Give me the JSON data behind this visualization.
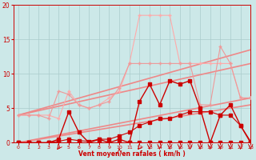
{
  "xlabel": "Vent moyen/en rafales ( km/h )",
  "background_color": "#cce8e8",
  "grid_color": "#aacccc",
  "xlim": [
    -0.5,
    23
  ],
  "ylim": [
    0,
    20
  ],
  "yticks": [
    0,
    5,
    10,
    15,
    20
  ],
  "xticks": [
    0,
    1,
    2,
    3,
    4,
    5,
    6,
    7,
    8,
    9,
    10,
    11,
    12,
    13,
    14,
    15,
    16,
    17,
    18,
    19,
    20,
    21,
    22,
    23
  ],
  "series": [
    {
      "x": [
        0,
        1,
        2,
        3,
        4,
        5,
        6,
        7,
        8,
        9,
        10,
        11,
        12,
        13,
        14,
        15,
        16,
        17,
        18,
        19,
        20,
        21,
        22,
        23
      ],
      "y": [
        0,
        0,
        0,
        0,
        0,
        0,
        0,
        0,
        0,
        0,
        0,
        0,
        0,
        0,
        0,
        0,
        0,
        0,
        0,
        0,
        0,
        0,
        0,
        0
      ],
      "color": "#cc0000",
      "lw": 0.8,
      "marker": "s",
      "ms": 2.5,
      "zorder": 5
    },
    {
      "x": [
        0,
        1,
        2,
        3,
        4,
        5,
        6,
        7,
        8,
        9,
        10,
        11,
        12,
        13,
        14,
        15,
        16,
        17,
        18,
        19,
        20,
        21,
        22,
        23
      ],
      "y": [
        0,
        0,
        0,
        0,
        0.2,
        0.5,
        0.3,
        0.2,
        0.5,
        0.5,
        1.0,
        1.5,
        2.5,
        3.0,
        3.5,
        3.5,
        4.0,
        4.5,
        4.5,
        4.5,
        4.0,
        4.0,
        2.5,
        0.2
      ],
      "color": "#cc0000",
      "lw": 0.8,
      "marker": "s",
      "ms": 2.5,
      "zorder": 5
    },
    {
      "x": [
        0,
        1,
        2,
        3,
        4,
        5,
        6,
        7,
        8,
        9,
        10,
        11,
        12,
        13,
        14,
        15,
        16,
        17,
        18,
        19,
        20,
        21,
        22,
        23
      ],
      "y": [
        0,
        0,
        0,
        0,
        0.5,
        4.5,
        1.5,
        0,
        0.5,
        0,
        0.5,
        0,
        6.0,
        8.5,
        5.5,
        9.0,
        8.5,
        9.0,
        5.0,
        0,
        4.0,
        5.5,
        2.5,
        0
      ],
      "color": "#cc0000",
      "lw": 1.0,
      "marker": "s",
      "ms": 2.5,
      "zorder": 5
    },
    {
      "x": [
        0,
        23
      ],
      "y": [
        0,
        5.5
      ],
      "color": "#ee8888",
      "lw": 1.2,
      "marker": null,
      "ms": 0,
      "zorder": 2
    },
    {
      "x": [
        0,
        23
      ],
      "y": [
        0,
        6.5
      ],
      "color": "#ee8888",
      "lw": 1.2,
      "marker": null,
      "ms": 0,
      "zorder": 2
    },
    {
      "x": [
        0,
        23
      ],
      "y": [
        4.0,
        11.5
      ],
      "color": "#ee8888",
      "lw": 1.2,
      "marker": null,
      "ms": 0,
      "zorder": 2
    },
    {
      "x": [
        0,
        23
      ],
      "y": [
        4.0,
        13.5
      ],
      "color": "#ee8888",
      "lw": 1.2,
      "marker": null,
      "ms": 0,
      "zorder": 2
    },
    {
      "x": [
        0,
        1,
        2,
        3,
        4,
        5,
        6,
        7,
        8,
        9,
        10,
        11,
        12,
        13,
        14,
        15,
        16,
        17,
        18,
        19,
        20,
        21,
        22,
        23
      ],
      "y": [
        4.0,
        4.0,
        4.0,
        4.0,
        3.5,
        7.5,
        5.5,
        5.0,
        5.5,
        6.5,
        7.5,
        11.5,
        18.5,
        18.5,
        18.5,
        18.5,
        11.5,
        11.5,
        11.5,
        11.5,
        11.5,
        11.5,
        6.5,
        6.5
      ],
      "color": "#ffaaaa",
      "lw": 0.8,
      "marker": "+",
      "ms": 3.5,
      "zorder": 3
    },
    {
      "x": [
        0,
        1,
        2,
        3,
        4,
        5,
        6,
        7,
        8,
        9,
        10,
        11,
        12,
        13,
        14,
        15,
        16,
        17,
        18,
        19,
        20,
        21,
        22,
        23
      ],
      "y": [
        4.0,
        4.0,
        4.0,
        3.5,
        7.5,
        7.0,
        5.5,
        5.0,
        5.5,
        6.0,
        8.0,
        11.5,
        11.5,
        11.5,
        11.5,
        11.5,
        11.5,
        11.5,
        5.5,
        5.5,
        14.0,
        11.5,
        6.5,
        6.5
      ],
      "color": "#ee9999",
      "lw": 0.8,
      "marker": "+",
      "ms": 3.5,
      "zorder": 3
    }
  ],
  "arrows_down": [
    13,
    14,
    15,
    16,
    17,
    18,
    19,
    20,
    21,
    22,
    23
  ],
  "arrows_up": [
    10
  ],
  "arrows_diag": [
    4,
    12
  ]
}
